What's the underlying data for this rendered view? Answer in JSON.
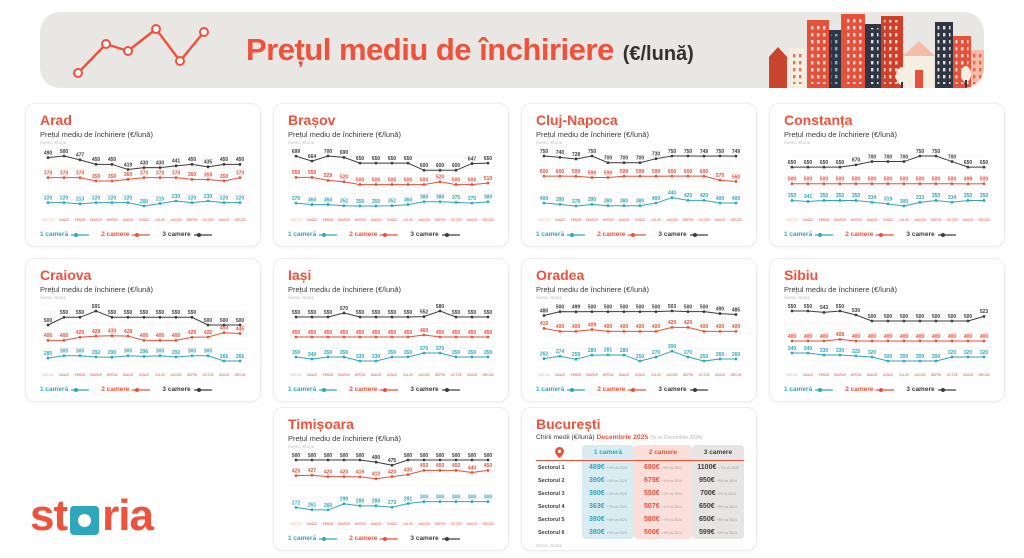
{
  "header": {
    "title": "Prețul mediu de închiriere",
    "title_suffix": "(€/lună)"
  },
  "card_subtitle": "Prețul mediu de închiriere (€/lună)",
  "source": "Sursa: Storia",
  "months": [
    "DEC24",
    "IAN25",
    "FEB25",
    "MAR25",
    "APR25",
    "MAI25",
    "IUN25",
    "IUL25",
    "AUG25",
    "SEP25",
    "OCT25",
    "NOI25",
    "DEC25"
  ],
  "legend": [
    "1 cameră",
    "2 camere",
    "3 camere"
  ],
  "colors": {
    "accent": "#F0513D",
    "one_room": "#2FA6BC",
    "two_rooms": "#E8503A",
    "three_rooms": "#3C3C3C",
    "header_bg": "#E9E7E4",
    "col_one_bg": "#D8ECF2",
    "col_two_bg": "#FBDFDA",
    "col_three_bg": "#E6E5E4"
  },
  "logo": {
    "left": "st",
    "right": "ria"
  },
  "chart_data": [
    {
      "type": "line",
      "city": "Arad",
      "title": "Arad",
      "series": [
        {
          "name": "1 cameră",
          "values": [
            220,
            220,
            213,
            220,
            220,
            220,
            200,
            215,
            230,
            220,
            230,
            220,
            220
          ]
        },
        {
          "name": "2 camere",
          "values": [
            370,
            370,
            370,
            350,
            350,
            360,
            370,
            370,
            370,
            360,
            359,
            350,
            370
          ]
        },
        {
          "name": "3 camere",
          "values": [
            490,
            500,
            477,
            450,
            450,
            419,
            430,
            430,
            441,
            450,
            435,
            450,
            450
          ]
        }
      ]
    },
    {
      "type": "line",
      "city": "Brașov",
      "title": "Brașov",
      "series": [
        {
          "name": "1 cameră",
          "values": [
            370,
            360,
            360,
            352,
            350,
            350,
            352,
            360,
            380,
            380,
            375,
            370,
            380
          ]
        },
        {
          "name": "2 camere",
          "values": [
            550,
            550,
            529,
            520,
            500,
            500,
            500,
            500,
            500,
            520,
            500,
            500,
            510
          ]
        },
        {
          "name": "3 camere",
          "values": [
            699,
            664,
            700,
            690,
            650,
            650,
            650,
            650,
            600,
            600,
            600,
            647,
            650
          ]
        }
      ]
    },
    {
      "type": "line",
      "city": "Cluj-Napoca",
      "title": "Cluj-Napoca",
      "series": [
        {
          "name": "1 cameră",
          "values": [
            400,
            390,
            378,
            390,
            380,
            380,
            380,
            400,
            440,
            420,
            420,
            400,
            400
          ]
        },
        {
          "name": "2 camere",
          "values": [
            600,
            600,
            599,
            590,
            590,
            599,
            599,
            599,
            600,
            600,
            600,
            570,
            560
          ]
        },
        {
          "name": "3 camere",
          "values": [
            750,
            740,
            728,
            750,
            700,
            700,
            700,
            730,
            750,
            750,
            749,
            750,
            749
          ]
        }
      ]
    },
    {
      "type": "line",
      "city": "Constanța",
      "title": "Constanța",
      "series": [
        {
          "name": "1 cameră",
          "values": [
            350,
            341,
            350,
            350,
            350,
            334,
            319,
            300,
            333,
            350,
            334,
            350,
            350
          ]
        },
        {
          "name": "2 camere",
          "values": [
            500,
            500,
            500,
            500,
            500,
            500,
            500,
            500,
            500,
            500,
            500,
            499,
            500
          ]
        },
        {
          "name": "3 camere",
          "values": [
            650,
            650,
            650,
            650,
            670,
            700,
            700,
            700,
            750,
            750,
            700,
            650,
            650
          ]
        }
      ]
    },
    {
      "type": "line",
      "city": "Craiova",
      "title": "Craiova",
      "series": [
        {
          "name": "1 cameră",
          "values": [
            285,
            300,
            300,
            292,
            290,
            300,
            296,
            300,
            292,
            300,
            300,
            266,
            266
          ]
        },
        {
          "name": "2 camere",
          "values": [
            400,
            400,
            420,
            428,
            430,
            428,
            400,
            400,
            400,
            420,
            422,
            450,
            445
          ]
        },
        {
          "name": "3 camere",
          "values": [
            500,
            550,
            550,
            591,
            550,
            550,
            550,
            550,
            550,
            550,
            500,
            500,
            500
          ]
        }
      ]
    },
    {
      "type": "line",
      "city": "Iași",
      "title": "Iași",
      "series": [
        {
          "name": "1 cameră",
          "values": [
            350,
            340,
            350,
            350,
            330,
            330,
            350,
            350,
            370,
            370,
            350,
            350,
            350
          ]
        },
        {
          "name": "2 camere",
          "values": [
            450,
            450,
            450,
            450,
            450,
            450,
            450,
            450,
            460,
            450,
            450,
            450,
            450
          ]
        },
        {
          "name": "3 camere",
          "values": [
            550,
            550,
            550,
            570,
            550,
            550,
            550,
            550,
            552,
            580,
            550,
            550,
            550
          ]
        }
      ]
    },
    {
      "type": "line",
      "city": "Oradea",
      "title": "Oradea",
      "series": [
        {
          "name": "1 cameră",
          "values": [
            262,
            274,
            259,
            280,
            281,
            280,
            250,
            270,
            300,
            270,
            250,
            260,
            260
          ]
        },
        {
          "name": "2 camere",
          "values": [
            415,
            400,
            400,
            409,
            400,
            400,
            400,
            400,
            420,
            420,
            400,
            400,
            400
          ]
        },
        {
          "name": "3 camere",
          "values": [
            480,
            500,
            499,
            500,
            500,
            500,
            500,
            500,
            503,
            500,
            500,
            490,
            485
          ]
        }
      ]
    },
    {
      "type": "line",
      "city": "Sibiu",
      "title": "Sibiu",
      "series": [
        {
          "name": "1 cameră",
          "values": [
            340,
            340,
            330,
            330,
            325,
            320,
            300,
            300,
            300,
            300,
            320,
            320,
            320
          ]
        },
        {
          "name": "2 camere",
          "values": [
            400,
            400,
            400,
            408,
            400,
            400,
            400,
            400,
            400,
            400,
            400,
            400,
            400
          ]
        },
        {
          "name": "3 camere",
          "values": [
            550,
            550,
            543,
            550,
            530,
            500,
            500,
            500,
            500,
            500,
            500,
            500,
            523
          ]
        }
      ]
    },
    {
      "type": "line",
      "city": "Timișoara",
      "title": "Timișoara",
      "series": [
        {
          "name": "1 cameră",
          "values": [
            272,
            261,
            260,
            290,
            280,
            280,
            273,
            291,
            300,
            300,
            300,
            300,
            300
          ]
        },
        {
          "name": "2 camere",
          "values": [
            425,
            427,
            420,
            420,
            419,
            410,
            420,
            430,
            450,
            450,
            450,
            440,
            450
          ]
        },
        {
          "name": "3 camere",
          "values": [
            500,
            500,
            500,
            500,
            500,
            490,
            475,
            500,
            500,
            500,
            500,
            500,
            500
          ]
        }
      ]
    },
    {
      "type": "table",
      "city": "București",
      "title": "București",
      "subtitle_main": "Chirii medii (€/lună)",
      "subtitle_period": "Decembrie 2025",
      "subtitle_note": "(% vs Decembrie 2024)",
      "columns": [
        "1 cameră",
        "2 camere",
        "3 camere"
      ],
      "rows": [
        {
          "sector": "Sectorul 1",
          "values": [
            {
              "price": "489€",
              "chg": "+9% vs 2024"
            },
            {
              "price": "680€",
              "chg": "+9% vs 2024"
            },
            {
              "price": "1100€",
              "chg": "+7% vs 2024"
            }
          ]
        },
        {
          "sector": "Sectorul 2",
          "values": [
            {
              "price": "390€",
              "chg": "+8% vs 2024"
            },
            {
              "price": "675€",
              "chg": "+4% vs 2024"
            },
            {
              "price": "950€",
              "chg": "+6% vs 2024"
            }
          ]
        },
        {
          "sector": "Sectorul 3",
          "values": [
            {
              "price": "390€",
              "chg": "+3% vs 2024"
            },
            {
              "price": "550€",
              "chg": "+2% vs 2024"
            },
            {
              "price": "700€",
              "chg": "0% vs 2024"
            }
          ]
        },
        {
          "sector": "Sectorul 4",
          "values": [
            {
              "price": "363€",
              "chg": "+7% vs 2024"
            },
            {
              "price": "507€",
              "chg": "+1% vs 2024"
            },
            {
              "price": "650€",
              "chg": "+8% vs 2024"
            }
          ]
        },
        {
          "sector": "Sectorul 5",
          "values": [
            {
              "price": "380€",
              "chg": "+8% vs 2024"
            },
            {
              "price": "580€",
              "chg": "+7% vs 2024"
            },
            {
              "price": "650€",
              "chg": "+8% vs 2024"
            }
          ]
        },
        {
          "sector": "Sectorul 6",
          "values": [
            {
              "price": "380€",
              "chg": "+9% vs 2024"
            },
            {
              "price": "500€",
              "chg": "+9% vs 2024"
            },
            {
              "price": "599€",
              "chg": "+9% vs 2024"
            }
          ]
        }
      ]
    }
  ]
}
